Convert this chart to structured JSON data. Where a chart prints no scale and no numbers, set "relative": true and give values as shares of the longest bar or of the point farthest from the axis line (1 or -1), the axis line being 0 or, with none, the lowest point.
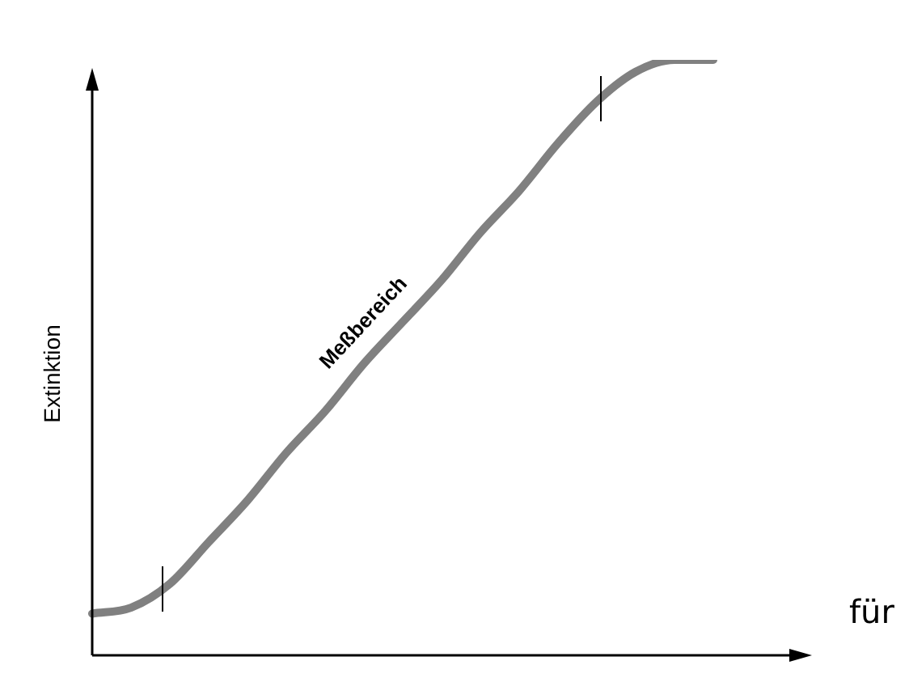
{
  "chart_data": {
    "type": "line",
    "ylabel": "Extinktion",
    "xlabel": "für",
    "annotations": [
      "Meßbereich"
    ],
    "relative": true,
    "categories": [
      null,
      null,
      null,
      null,
      null,
      null,
      null,
      null,
      null,
      null,
      null,
      null,
      null,
      null,
      null,
      null,
      null,
      null,
      null
    ],
    "values": [
      0.07,
      0.08,
      0.12,
      0.19,
      0.26,
      0.34,
      0.41,
      0.49,
      0.56,
      0.63,
      0.71,
      0.78,
      0.86,
      0.93,
      0.98,
      1.0,
      1.0,
      null,
      null
    ],
    "color": "#808080"
  }
}
